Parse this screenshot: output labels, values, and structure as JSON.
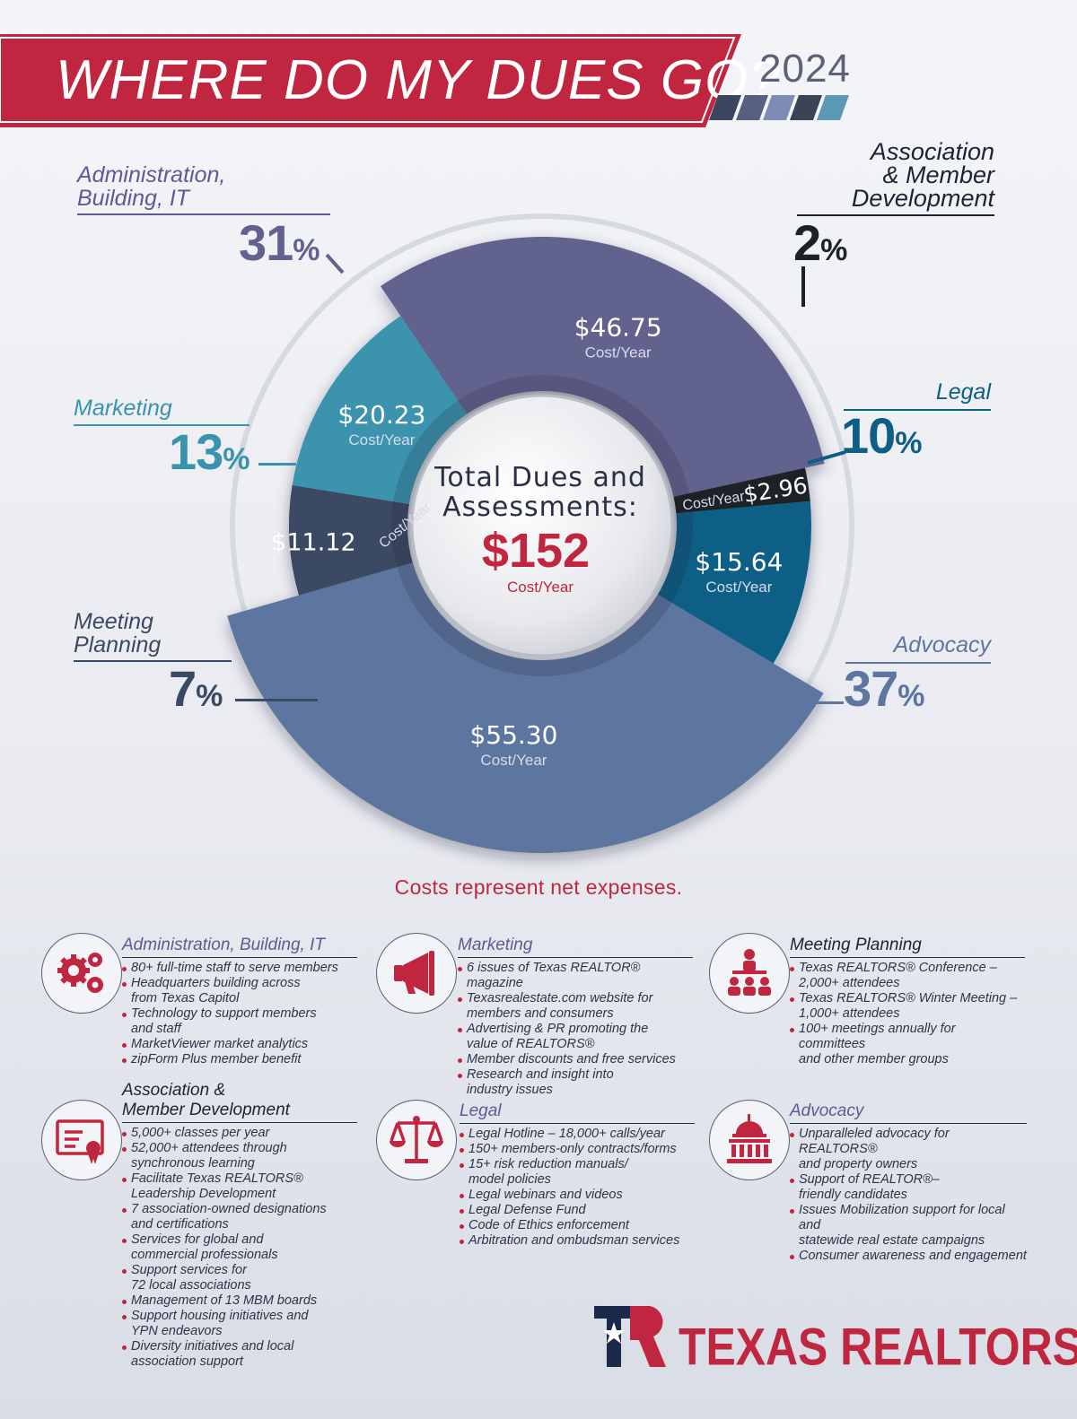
{
  "header": {
    "title": "WHERE DO MY DUES GO?",
    "year": "2024"
  },
  "colors": {
    "brand_red": "#c0263f",
    "administration": "#62628f",
    "association": "#1c2226",
    "legal": "#0f5e85",
    "advocacy": "#5d76a0",
    "meeting": "#3a4a63",
    "marketing": "#3a93ae",
    "center_label": "#2a2f45"
  },
  "chart_data": {
    "type": "pie",
    "variant": "donut",
    "center": {
      "line1": "Total Dues and",
      "line2": "Assessments:",
      "total": "$152",
      "unit": "Cost/Year"
    },
    "slices": [
      {
        "key": "administration",
        "label": "Administration, Building, IT",
        "percent": 31,
        "amount": "$46.75",
        "unit": "Cost/Year",
        "pct_text": "31",
        "pct_sign": "%"
      },
      {
        "key": "association",
        "label": "Association & Member Development",
        "percent": 2,
        "amount": "$2.96",
        "unit": "Cost/Year",
        "pct_text": "2",
        "pct_sign": "%"
      },
      {
        "key": "legal",
        "label": "Legal",
        "percent": 10,
        "amount": "$15.64",
        "unit": "Cost/Year",
        "pct_text": "10",
        "pct_sign": "%"
      },
      {
        "key": "advocacy",
        "label": "Advocacy",
        "percent": 37,
        "amount": "$55.30",
        "unit": "Cost/Year",
        "pct_text": "37",
        "pct_sign": "%"
      },
      {
        "key": "meeting",
        "label": "Meeting Planning",
        "percent": 7,
        "amount": "$11.12",
        "unit": "Cost/Year",
        "pct_text": "7",
        "pct_sign": "%"
      },
      {
        "key": "marketing",
        "label": "Marketing",
        "percent": 13,
        "amount": "$20.23",
        "unit": "Cost/Year",
        "pct_text": "13",
        "pct_sign": "%"
      }
    ],
    "note": "Costs represent net expenses."
  },
  "labels": {
    "administration": [
      "Administration,",
      "Building, IT"
    ],
    "association": [
      "Association",
      "& Member",
      "Development"
    ],
    "legal": [
      "Legal"
    ],
    "advocacy": [
      "Advocacy"
    ],
    "meeting": [
      "Meeting",
      "Planning"
    ],
    "marketing": [
      "Marketing"
    ]
  },
  "details": [
    {
      "key": "administration",
      "icon": "gears-icon",
      "title": "Administration, Building, IT",
      "items": [
        "80+ full-time staff to serve members",
        "Headquarters building across\nfrom Texas Capitol",
        "Technology to support members\nand staff",
        "MarketViewer market analytics",
        "zipForm Plus member benefit"
      ]
    },
    {
      "key": "marketing",
      "icon": "megaphone-icon",
      "title": "Marketing",
      "items": [
        "6 issues of Texas REALTOR® magazine",
        "Texasrealestate.com website for\nmembers and consumers",
        "Advertising & PR promoting the\nvalue of REALTORS®",
        "Member discounts and free services",
        "Research and insight into\nindustry issues"
      ]
    },
    {
      "key": "meeting",
      "icon": "presenter-icon",
      "title": "Meeting Planning",
      "items": [
        "Texas REALTORS® Conference –\n2,000+ attendees",
        "Texas REALTORS® Winter Meeting –\n1,000+ attendees",
        "100+ meetings annually for committees\nand other member groups"
      ]
    },
    {
      "key": "association",
      "icon": "certificate-icon",
      "title": "Association &\nMember Development",
      "items": [
        "5,000+ classes per year",
        "52,000+ attendees through\nsynchronous learning",
        "Facilitate Texas REALTORS®\nLeadership Development",
        "7 association-owned designations\nand certifications",
        "Services for global and\ncommercial professionals",
        "Support services for\n72 local associations",
        "Management of 13 MBM boards",
        "Support housing initiatives and\nYPN endeavors",
        "Diversity initiatives and local\nassociation support"
      ]
    },
    {
      "key": "legal",
      "icon": "scales-icon",
      "title": "Legal",
      "items": [
        "Legal Hotline – 18,000+ calls/year",
        "150+ members-only contracts/forms",
        "15+ risk reduction manuals/\nmodel policies",
        "Legal webinars and videos",
        "Legal Defense Fund",
        "Code of Ethics enforcement",
        "Arbitration and ombudsman services"
      ]
    },
    {
      "key": "advocacy",
      "icon": "capitol-icon",
      "title": "Advocacy",
      "items": [
        "Unparalleled advocacy for REALTORS®\nand property owners",
        "Support of REALTOR®–\nfriendly candidates",
        "Issues Mobilization support for local and\nstatewide real estate campaigns",
        "Consumer awareness and engagement"
      ]
    }
  ],
  "logo": {
    "text": "TEXAS REALTORS",
    "mark": "®"
  }
}
